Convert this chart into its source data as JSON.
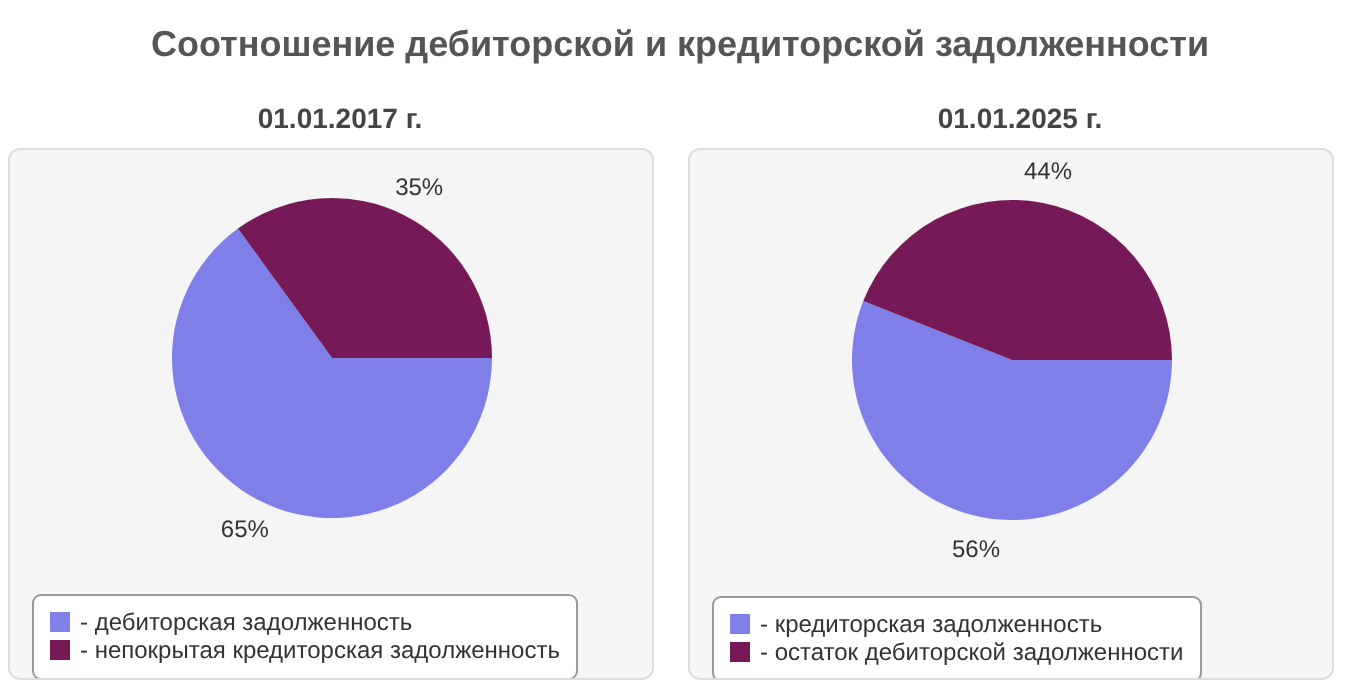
{
  "chart_data": [
    {
      "type": "pie",
      "title": "Соотношение дебиторской и кредиторской задолженности",
      "subtitle": "01.01.2017 г.",
      "categories": [
        "- дебиторская задолженность",
        "- непокрытая кредиторская задолженность"
      ],
      "values": [
        65,
        35
      ],
      "value_labels": [
        "65%",
        "35%"
      ],
      "colors": [
        "#7f7fea",
        "#761a57"
      ],
      "legend": "bottom"
    },
    {
      "type": "pie",
      "subtitle": "01.01.2025 г.",
      "categories": [
        "- кредиторская задолженность",
        "- остаток дебиторской задолженности"
      ],
      "values": [
        56,
        44
      ],
      "value_labels": [
        "56%",
        "44%"
      ],
      "colors": [
        "#7f7fea",
        "#761a57"
      ],
      "legend": "bottom"
    }
  ]
}
